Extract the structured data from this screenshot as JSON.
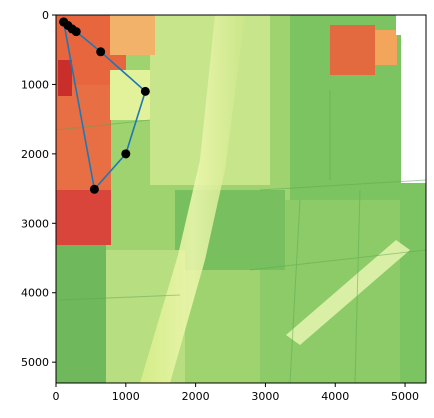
{
  "chart_data": {
    "type": "scatter",
    "title": "",
    "xlabel": "",
    "ylabel": "",
    "xlim": [
      0,
      5300
    ],
    "ylim": [
      5300,
      0
    ],
    "x_ticks": [
      0,
      1000,
      2000,
      3000,
      4000,
      5000
    ],
    "y_ticks": [
      0,
      1000,
      2000,
      3000,
      4000,
      5000
    ],
    "background": "aerial NDVI-style map of agricultural fields, RdYlGn colormap",
    "series": [
      {
        "line_color": "#1f77b4",
        "marker_color": "#000000",
        "points": [
          {
            "x": 110,
            "y": 100
          },
          {
            "x": 170,
            "y": 150
          },
          {
            "x": 230,
            "y": 200
          },
          {
            "x": 290,
            "y": 240
          },
          {
            "x": 640,
            "y": 530
          },
          {
            "x": 1280,
            "y": 1100
          },
          {
            "x": 1000,
            "y": 2000
          },
          {
            "x": 550,
            "y": 2510
          },
          {
            "x": 110,
            "y": 100
          }
        ]
      }
    ]
  }
}
